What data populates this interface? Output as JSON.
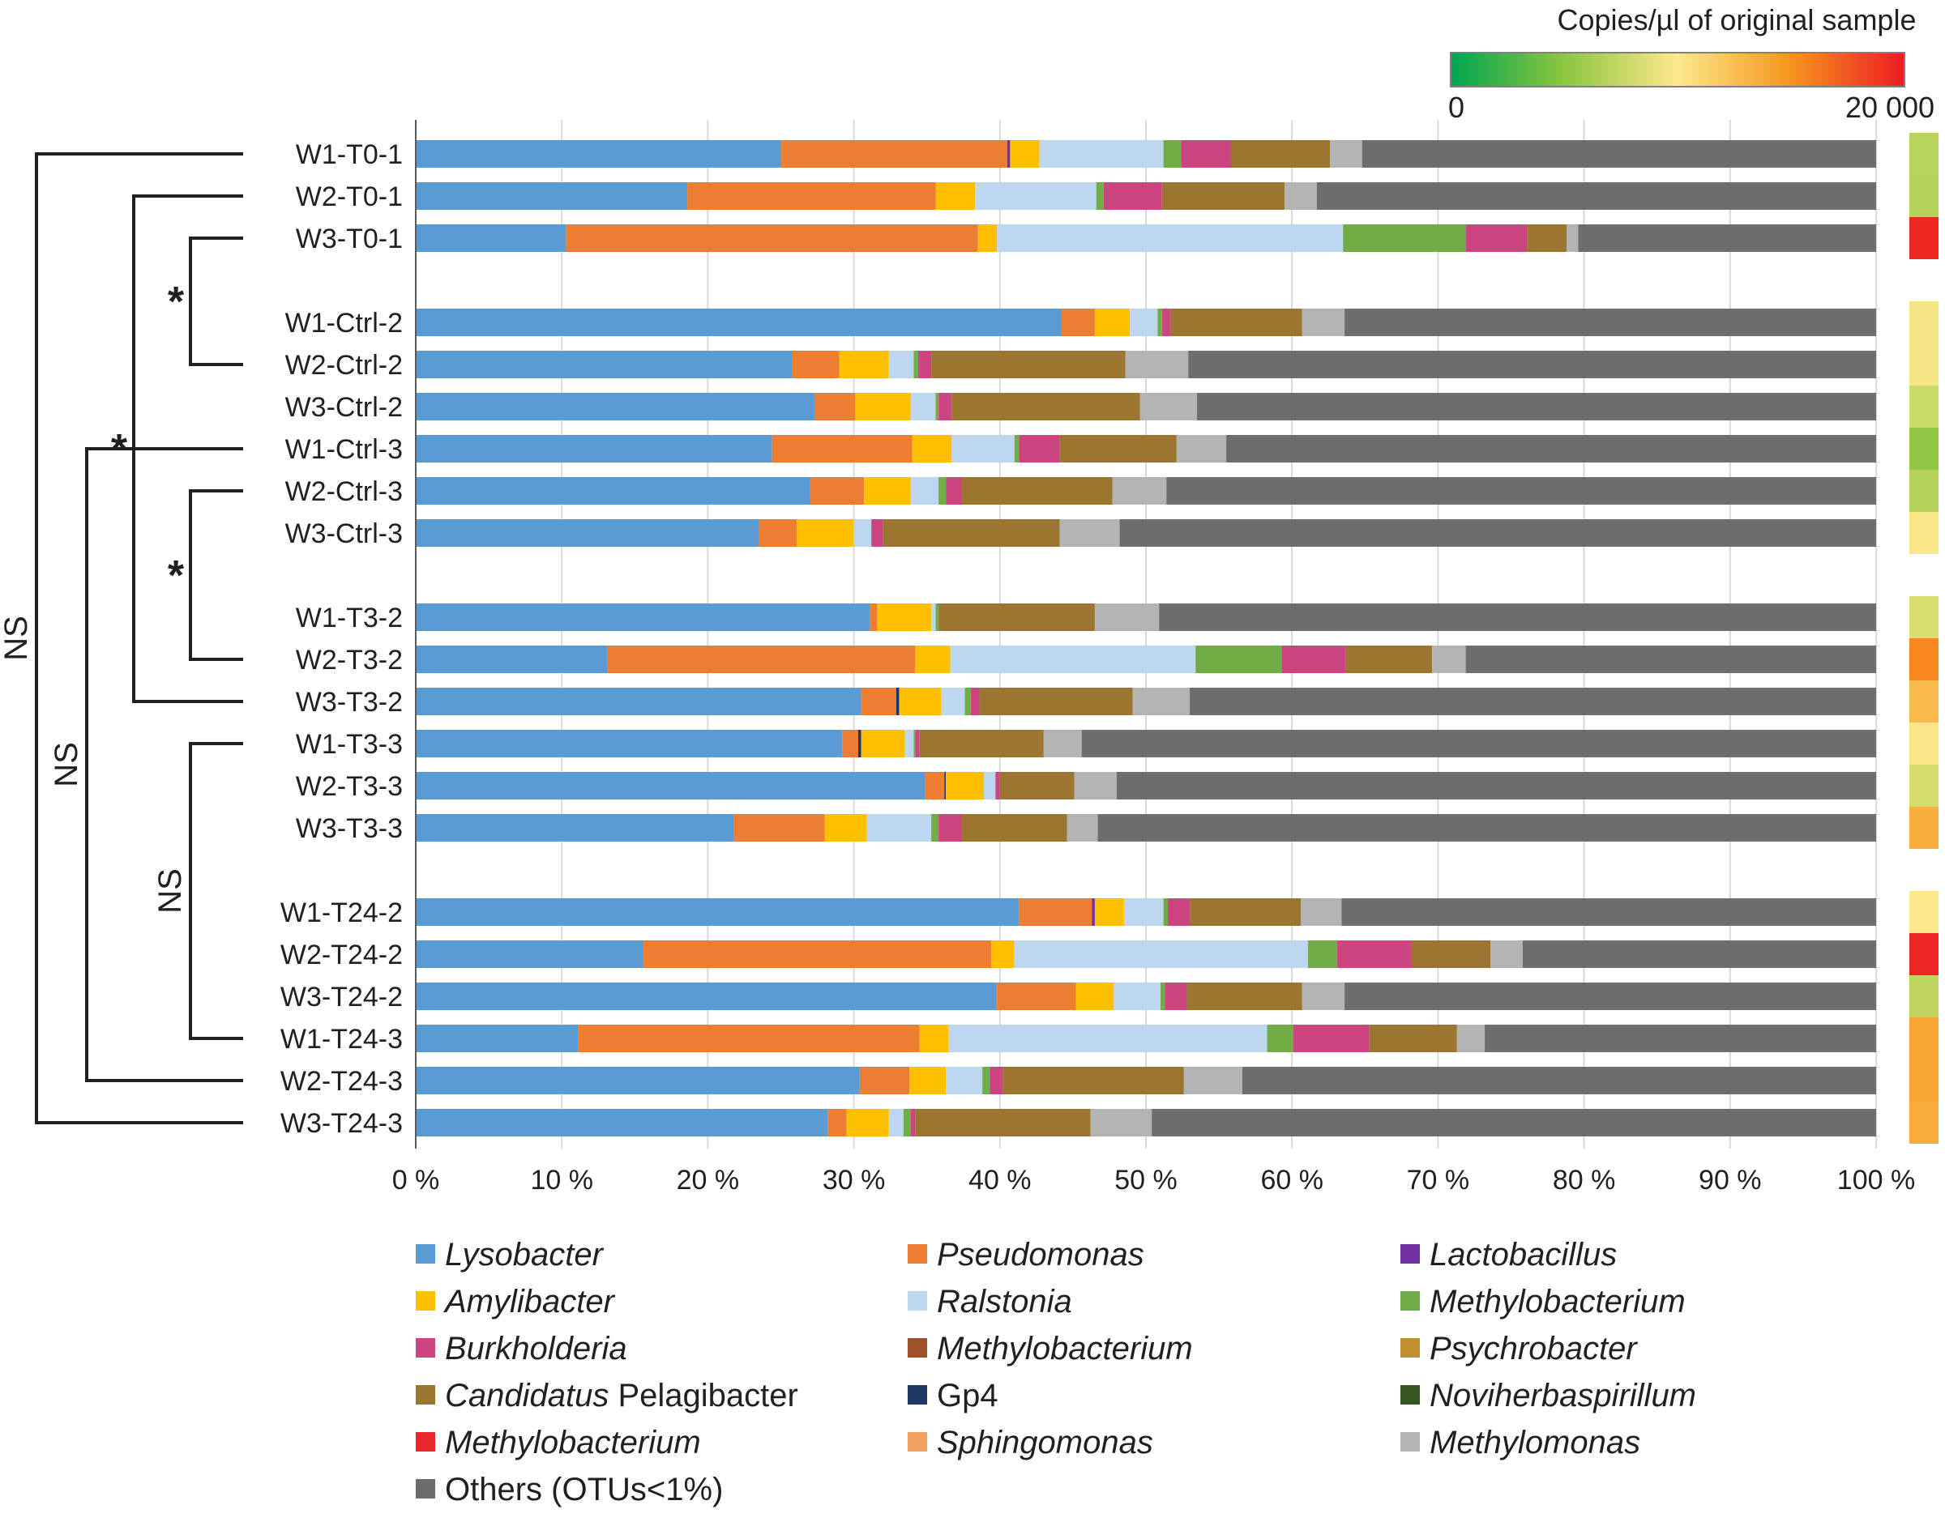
{
  "chart_data": {
    "type": "bar",
    "orientation": "horizontal",
    "stacked": true,
    "percent_axis": true,
    "xlim": [
      0,
      100
    ],
    "x_ticks": [
      "0 %",
      "10 %",
      "20 %",
      "30 %",
      "40 %",
      "50 %",
      "60 %",
      "70 %",
      "80 %",
      "90 %",
      "100 %"
    ],
    "grid": "vertical",
    "colorbar": {
      "title": "Copies/µl of original sample",
      "min_label": "0",
      "max_label": "20 000",
      "range": [
        0,
        20000
      ],
      "stops": [
        "#00a651",
        "#8cc63f",
        "#fde98b",
        "#f7941d",
        "#ed1c24"
      ]
    },
    "legend": [
      {
        "label": "Lysobacter",
        "italic": true,
        "color": "#5b9bd5"
      },
      {
        "label": "Pseudomonas",
        "italic": true,
        "color": "#ed7d31"
      },
      {
        "label": "Lactobacillus",
        "italic": true,
        "color": "#7030a0"
      },
      {
        "label": "Amylibacter",
        "italic": true,
        "color": "#ffc000"
      },
      {
        "label": "Ralstonia",
        "italic": true,
        "color": "#bdd7ee"
      },
      {
        "label": "Methylobacterium",
        "italic": true,
        "color": "#70ad47"
      },
      {
        "label": "Burkholderia",
        "italic": true,
        "color": "#cc4480"
      },
      {
        "label": "Methylobacterium",
        "italic": true,
        "color": "#a0522d"
      },
      {
        "label": "Psychrobacter",
        "italic": true,
        "color": "#bf9030"
      },
      {
        "label": "Candidatus",
        "italic": true,
        "label_extra": " Pelagibacter",
        "color": "#9c7530"
      },
      {
        "label": "Gp4",
        "italic": false,
        "color": "#1f3864"
      },
      {
        "label": "Noviherbaspirillum",
        "italic": true,
        "color": "#375623"
      },
      {
        "label": "Methylobacterium",
        "italic": true,
        "color": "#e8262b"
      },
      {
        "label": "Sphingomonas",
        "italic": true,
        "color": "#f4a261"
      },
      {
        "label": "Methylomonas",
        "italic": true,
        "color": "#b4b4b4"
      },
      {
        "label": "Others (OTUs<1%)",
        "italic": false,
        "color": "#706c6b"
      }
    ],
    "samples": [
      {
        "name": "W1-T0-1",
        "group": 0,
        "copies": 7000,
        "segments": [
          [
            "#5b9bd5",
            25
          ],
          [
            "#ed7d31",
            15.5
          ],
          [
            "#7030a0",
            0.2
          ],
          [
            "#ffc000",
            2
          ],
          [
            "#bdd7ee",
            8.5
          ],
          [
            "#70ad47",
            1.2
          ],
          [
            "#cc4480",
            3.4
          ],
          [
            "#9c7530",
            6.8
          ],
          [
            "#b4b4b4",
            2.2
          ],
          [
            "#706c6b",
            35.2
          ]
        ]
      },
      {
        "name": "W2-T0-1",
        "group": 0,
        "copies": 6800,
        "segments": [
          [
            "#5b9bd5",
            18.6
          ],
          [
            "#ed7d31",
            17
          ],
          [
            "#ffc000",
            2.7
          ],
          [
            "#bdd7ee",
            8.3
          ],
          [
            "#70ad47",
            0.5
          ],
          [
            "#cc4480",
            4
          ],
          [
            "#9c7530",
            8.4
          ],
          [
            "#b4b4b4",
            2.2
          ],
          [
            "#706c6b",
            38.3
          ]
        ]
      },
      {
        "name": "W3-T0-1",
        "group": 0,
        "copies": 19500,
        "segments": [
          [
            "#5b9bd5",
            10.3
          ],
          [
            "#ed7d31",
            28.2
          ],
          [
            "#ffc000",
            1.3
          ],
          [
            "#bdd7ee",
            23.7
          ],
          [
            "#70ad47",
            8.4
          ],
          [
            "#cc4480",
            4.2
          ],
          [
            "#9c7530",
            2.7
          ],
          [
            "#b4b4b4",
            0.8
          ],
          [
            "#706c6b",
            20.4
          ]
        ]
      },
      {
        "name": "W1-Ctrl-2",
        "group": 1,
        "copies": 9600,
        "segments": [
          [
            "#5b9bd5",
            44.2
          ],
          [
            "#ed7d31",
            2.3
          ],
          [
            "#ffc000",
            2.4
          ],
          [
            "#bdd7ee",
            1.9
          ],
          [
            "#70ad47",
            0.3
          ],
          [
            "#cc4480",
            0.6
          ],
          [
            "#9c7530",
            9
          ],
          [
            "#b4b4b4",
            2.9
          ],
          [
            "#706c6b",
            36.4
          ]
        ]
      },
      {
        "name": "W2-Ctrl-2",
        "group": 1,
        "copies": 9700,
        "segments": [
          [
            "#5b9bd5",
            25.8
          ],
          [
            "#ed7d31",
            3.2
          ],
          [
            "#ffc000",
            3.4
          ],
          [
            "#bdd7ee",
            1.7
          ],
          [
            "#70ad47",
            0.3
          ],
          [
            "#cc4480",
            0.9
          ],
          [
            "#9c7530",
            13.3
          ],
          [
            "#b4b4b4",
            4.3
          ],
          [
            "#706c6b",
            47.1
          ]
        ]
      },
      {
        "name": "W3-Ctrl-2",
        "group": 1,
        "copies": 7800,
        "segments": [
          [
            "#5b9bd5",
            27.3
          ],
          [
            "#ed7d31",
            2.8
          ],
          [
            "#ffc000",
            3.8
          ],
          [
            "#bdd7ee",
            1.7
          ],
          [
            "#70ad47",
            0.2
          ],
          [
            "#cc4480",
            0.9
          ],
          [
            "#9c7530",
            12.9
          ],
          [
            "#b4b4b4",
            3.9
          ],
          [
            "#706c6b",
            46.5
          ]
        ]
      },
      {
        "name": "W1-Ctrl-3",
        "group": 1,
        "copies": 5200,
        "segments": [
          [
            "#5b9bd5",
            24.4
          ],
          [
            "#ed7d31",
            9.6
          ],
          [
            "#ffc000",
            2.7
          ],
          [
            "#bdd7ee",
            4.3
          ],
          [
            "#70ad47",
            0.3
          ],
          [
            "#cc4480",
            2.8
          ],
          [
            "#9c7530",
            8
          ],
          [
            "#b4b4b4",
            3.4
          ],
          [
            "#706c6b",
            44.5
          ]
        ]
      },
      {
        "name": "W2-Ctrl-3",
        "group": 1,
        "copies": 6800,
        "segments": [
          [
            "#5b9bd5",
            27
          ],
          [
            "#ed7d31",
            3.7
          ],
          [
            "#ffc000",
            3.2
          ],
          [
            "#bdd7ee",
            1.9
          ],
          [
            "#70ad47",
            0.5
          ],
          [
            "#cc4480",
            1.1
          ],
          [
            "#9c7530",
            10.3
          ],
          [
            "#b4b4b4",
            3.7
          ],
          [
            "#706c6b",
            48.6
          ]
        ]
      },
      {
        "name": "W3-Ctrl-3",
        "group": 1,
        "copies": 9800,
        "segments": [
          [
            "#5b9bd5",
            23.5
          ],
          [
            "#ed7d31",
            2.6
          ],
          [
            "#ffc000",
            3.9
          ],
          [
            "#bdd7ee",
            1.2
          ],
          [
            "#cc4480",
            0.8
          ],
          [
            "#9c7530",
            12.1
          ],
          [
            "#b4b4b4",
            4.1
          ],
          [
            "#706c6b",
            51.8
          ]
        ]
      },
      {
        "name": "W1-T3-2",
        "group": 2,
        "copies": 8400,
        "segments": [
          [
            "#5b9bd5",
            31.1
          ],
          [
            "#ed7d31",
            0.5
          ],
          [
            "#ffc000",
            3.7
          ],
          [
            "#bdd7ee",
            0.3
          ],
          [
            "#70ad47",
            0.2
          ],
          [
            "#9c7530",
            10.7
          ],
          [
            "#b4b4b4",
            4.4
          ],
          [
            "#706c6b",
            49.1
          ]
        ]
      },
      {
        "name": "W2-T3-2",
        "group": 2,
        "copies": 15500,
        "segments": [
          [
            "#5b9bd5",
            13.1
          ],
          [
            "#ed7d31",
            21.1
          ],
          [
            "#ffc000",
            2.4
          ],
          [
            "#bdd7ee",
            16.8
          ],
          [
            "#70ad47",
            5.9
          ],
          [
            "#cc4480",
            4.4
          ],
          [
            "#9c7530",
            5.9
          ],
          [
            "#b4b4b4",
            2.3
          ],
          [
            "#706c6b",
            28.1
          ]
        ]
      },
      {
        "name": "W3-T3-2",
        "group": 2,
        "copies": 12800,
        "segments": [
          [
            "#5b9bd5",
            30.5
          ],
          [
            "#ed7d31",
            2.4
          ],
          [
            "#1f3864",
            0.2
          ],
          [
            "#ffc000",
            2.9
          ],
          [
            "#bdd7ee",
            1.6
          ],
          [
            "#70ad47",
            0.4
          ],
          [
            "#cc4480",
            0.6
          ],
          [
            "#9c7530",
            10.5
          ],
          [
            "#b4b4b4",
            3.9
          ],
          [
            "#706c6b",
            47
          ]
        ]
      },
      {
        "name": "W1-T3-3",
        "group": 2,
        "copies": 10200,
        "segments": [
          [
            "#5b9bd5",
            29.2
          ],
          [
            "#ed7d31",
            1.1
          ],
          [
            "#1f3864",
            0.2
          ],
          [
            "#ffc000",
            3
          ],
          [
            "#bdd7ee",
            0.6
          ],
          [
            "#70ad47",
            0.1
          ],
          [
            "#cc4480",
            0.3
          ],
          [
            "#9c7530",
            8.5
          ],
          [
            "#b4b4b4",
            2.6
          ],
          [
            "#706c6b",
            54.4
          ]
        ]
      },
      {
        "name": "W2-T3-3",
        "group": 2,
        "copies": 8200,
        "segments": [
          [
            "#5b9bd5",
            34.9
          ],
          [
            "#ed7d31",
            1.3
          ],
          [
            "#1f3864",
            0.1
          ],
          [
            "#ffc000",
            2.6
          ],
          [
            "#bdd7ee",
            0.8
          ],
          [
            "#cc4480",
            0.3
          ],
          [
            "#9c7530",
            5.1
          ],
          [
            "#b4b4b4",
            2.9
          ],
          [
            "#706c6b",
            52
          ]
        ]
      },
      {
        "name": "W3-T3-3",
        "group": 2,
        "copies": 13500,
        "segments": [
          [
            "#5b9bd5",
            21.8
          ],
          [
            "#ed7d31",
            6.2
          ],
          [
            "#ffc000",
            2.9
          ],
          [
            "#bdd7ee",
            4.4
          ],
          [
            "#70ad47",
            0.5
          ],
          [
            "#cc4480",
            1.6
          ],
          [
            "#9c7530",
            7.2
          ],
          [
            "#b4b4b4",
            2.1
          ],
          [
            "#706c6b",
            53.3
          ]
        ]
      },
      {
        "name": "W1-T24-2",
        "group": 3,
        "copies": 10000,
        "segments": [
          [
            "#5b9bd5",
            41.3
          ],
          [
            "#ed7d31",
            5
          ],
          [
            "#7030a0",
            0.2
          ],
          [
            "#ffc000",
            2
          ],
          [
            "#bdd7ee",
            2.7
          ],
          [
            "#70ad47",
            0.3
          ],
          [
            "#cc4480",
            1.5
          ],
          [
            "#9c7530",
            7.6
          ],
          [
            "#b4b4b4",
            2.8
          ],
          [
            "#706c6b",
            36.6
          ]
        ]
      },
      {
        "name": "W2-T24-2",
        "group": 3,
        "copies": 19600,
        "segments": [
          [
            "#5b9bd5",
            15.6
          ],
          [
            "#ed7d31",
            23.8
          ],
          [
            "#ffc000",
            1.6
          ],
          [
            "#bdd7ee",
            20.1
          ],
          [
            "#70ad47",
            2
          ],
          [
            "#cc4480",
            5.1
          ],
          [
            "#9c7530",
            5.4
          ],
          [
            "#b4b4b4",
            2.2
          ],
          [
            "#706c6b",
            24.2
          ]
        ]
      },
      {
        "name": "W3-T24-2",
        "group": 3,
        "copies": 7200,
        "segments": [
          [
            "#5b9bd5",
            39.8
          ],
          [
            "#ed7d31",
            5.4
          ],
          [
            "#ffc000",
            2.6
          ],
          [
            "#bdd7ee",
            3.2
          ],
          [
            "#70ad47",
            0.3
          ],
          [
            "#cc4480",
            1.5
          ],
          [
            "#9c7530",
            7.9
          ],
          [
            "#b4b4b4",
            2.9
          ],
          [
            "#706c6b",
            36.4
          ]
        ]
      },
      {
        "name": "W1-T24-3",
        "group": 3,
        "copies": 14000,
        "segments": [
          [
            "#5b9bd5",
            11.1
          ],
          [
            "#ed7d31",
            23.4
          ],
          [
            "#ffc000",
            2
          ],
          [
            "#bdd7ee",
            21.8
          ],
          [
            "#70ad47",
            1.8
          ],
          [
            "#cc4480",
            5.2
          ],
          [
            "#9c7530",
            6
          ],
          [
            "#b4b4b4",
            1.9
          ],
          [
            "#706c6b",
            26.8
          ]
        ]
      },
      {
        "name": "W2-T24-3",
        "group": 3,
        "copies": 14000,
        "segments": [
          [
            "#5b9bd5",
            30.4
          ],
          [
            "#ed7d31",
            3.4
          ],
          [
            "#ffc000",
            2.5
          ],
          [
            "#bdd7ee",
            2.5
          ],
          [
            "#70ad47",
            0.5
          ],
          [
            "#cc4480",
            0.9
          ],
          [
            "#9c7530",
            12.4
          ],
          [
            "#b4b4b4",
            4
          ],
          [
            "#706c6b",
            43.4
          ]
        ]
      },
      {
        "name": "W3-T24-3",
        "group": 3,
        "copies": 13600,
        "segments": [
          [
            "#5b9bd5",
            28.2
          ],
          [
            "#ed7d31",
            1.3
          ],
          [
            "#ffc000",
            2.9
          ],
          [
            "#bdd7ee",
            1
          ],
          [
            "#70ad47",
            0.5
          ],
          [
            "#cc4480",
            0.3
          ],
          [
            "#9c7530",
            12
          ],
          [
            "#b4b4b4",
            4.2
          ],
          [
            "#706c6b",
            49.6
          ]
        ]
      }
    ],
    "significance": {
      "ns_label": "NS",
      "star_label": "*",
      "brackets": [
        {
          "from": "W1-T0-1",
          "to": "W3-T24-3",
          "label": "NS"
        },
        {
          "from": "W1-Ctrl-3",
          "to": "W2-T24-3",
          "label": "NS"
        },
        {
          "from": "W2-T0-1",
          "to": "W3-T3-2",
          "label": "*"
        },
        {
          "from": "W3-T0-1",
          "to": "W2-Ctrl-2",
          "label": "*"
        },
        {
          "from": "W2-Ctrl-3",
          "to": "W2-T3-2",
          "label": "*"
        },
        {
          "from": "W1-T3-3",
          "to": "W1-T24-3",
          "label": "NS"
        }
      ]
    }
  }
}
